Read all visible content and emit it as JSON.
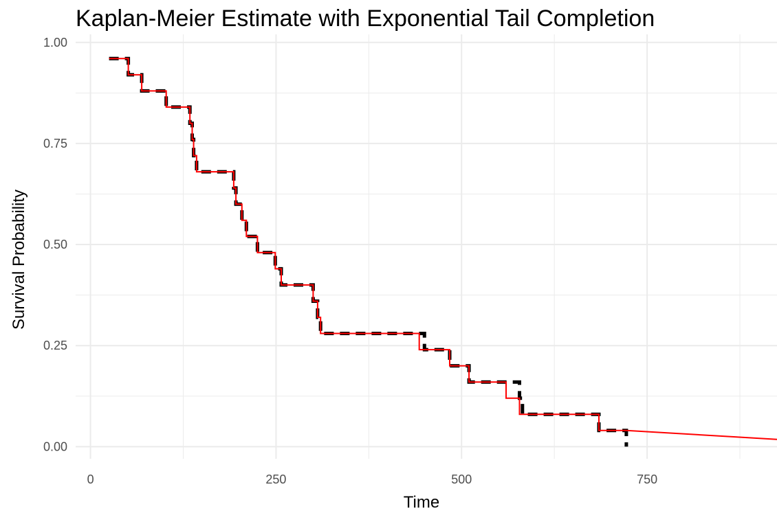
{
  "chart_data": {
    "type": "line",
    "title": "Kaplan-Meier Estimate with Exponential Tail Completion",
    "xlabel": "Time",
    "ylabel": "Survival Probability",
    "xlim": [
      -20,
      925
    ],
    "ylim": [
      -0.03,
      1.02
    ],
    "x_ticks": [
      0,
      250,
      500,
      750
    ],
    "x_tick_labels": [
      "0",
      "250",
      "500",
      "750"
    ],
    "y_ticks": [
      0,
      0.25,
      0.5,
      0.75,
      1.0
    ],
    "y_tick_labels": [
      "0.00",
      "0.25",
      "0.50",
      "0.75",
      "1.00"
    ],
    "grid": true,
    "legend": "none",
    "colors": {
      "km": "#000000",
      "tail": "#ff0000"
    },
    "series": [
      {
        "style": "dashed-step",
        "color": "#000000",
        "x": [
          0,
          25,
          51,
          69,
          102,
          134,
          137,
          139,
          143,
          193,
          196,
          204,
          210,
          225,
          249,
          257,
          300,
          306,
          310,
          443,
          450,
          480,
          484,
          510,
          560,
          578,
          582,
          680,
          685,
          722
        ],
        "y": [
          1.0,
          0.96,
          0.92,
          0.88,
          0.84,
          0.8,
          0.76,
          0.72,
          0.68,
          0.64,
          0.6,
          0.56,
          0.52,
          0.48,
          0.44,
          0.4,
          0.36,
          0.32,
          0.28,
          0.28,
          0.24,
          0.24,
          0.2,
          0.16,
          0.16,
          0.12,
          0.08,
          0.08,
          0.04,
          0.0
        ]
      },
      {
        "style": "solid-step",
        "color": "#ff0000",
        "x": [
          25,
          25,
          51,
          69,
          102,
          134,
          137,
          139,
          143,
          193,
          196,
          204,
          210,
          225,
          249,
          257,
          300,
          306,
          310,
          443,
          484,
          510,
          560,
          578,
          685,
          722,
          925
        ],
        "y": [
          0.96,
          0.96,
          0.92,
          0.88,
          0.84,
          0.8,
          0.76,
          0.72,
          0.68,
          0.64,
          0.6,
          0.56,
          0.52,
          0.48,
          0.44,
          0.4,
          0.36,
          0.32,
          0.28,
          0.24,
          0.2,
          0.16,
          0.12,
          0.08,
          0.04,
          0.04,
          0.018
        ]
      }
    ]
  }
}
